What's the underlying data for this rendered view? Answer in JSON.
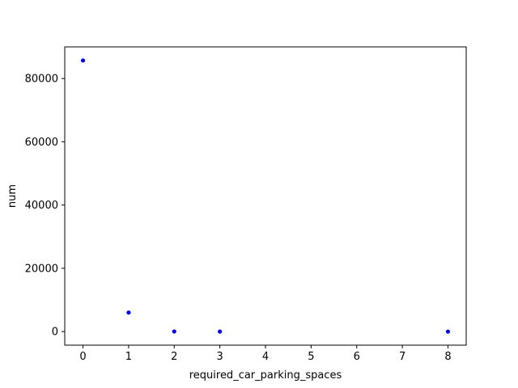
{
  "chart_data": {
    "type": "scatter",
    "title": "",
    "xlabel": "required_car_parking_spaces",
    "ylabel": "num",
    "marker_color": "#0000ff",
    "xlim": [
      -0.4,
      8.4
    ],
    "ylim": [
      -4300,
      90000
    ],
    "x_ticks": [
      0,
      1,
      2,
      3,
      4,
      5,
      6,
      7,
      8
    ],
    "y_ticks": [
      0,
      20000,
      40000,
      60000,
      80000
    ],
    "points": [
      {
        "x": 0,
        "y": 85700
      },
      {
        "x": 1,
        "y": 6000
      },
      {
        "x": 2,
        "y": 30
      },
      {
        "x": 3,
        "y": 3
      },
      {
        "x": 8,
        "y": 2
      }
    ],
    "grid": false,
    "legend": "none"
  }
}
